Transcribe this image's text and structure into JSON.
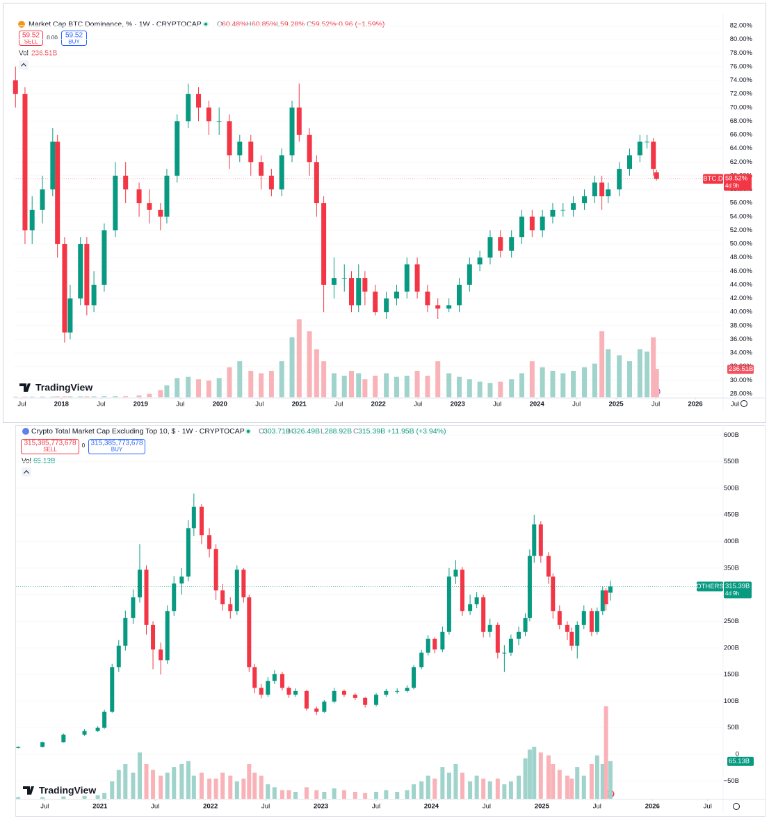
{
  "chart_data": [
    {
      "type": "candlestick",
      "header": {
        "title": "Market Cap BTC Dominance, % · 1W · CRYPTOCAP",
        "ohlc": [
          {
            "label": "O",
            "value": "60.48%"
          },
          {
            "label": "H",
            "value": "60.85%"
          },
          {
            "label": "L",
            "value": "59.28%"
          },
          {
            "label": "C",
            "value": "59.52%"
          }
        ],
        "change": "−0.96 (−1.59%)",
        "sell_price": "59.52",
        "sell": "SELL",
        "spread": "0.00",
        "buy_price": "59.52",
        "buy": "BUY",
        "vol_label": "Vol",
        "vol_value": "236.51B"
      },
      "price_label": {
        "symbol": "BTC.D",
        "price": "59.52%",
        "countdown": "4d 9h"
      },
      "volume_label": "236.51B",
      "logo": "TradingView",
      "colors": {
        "up": "#089981",
        "down": "#f23645",
        "volume_up": "#9fd3cb",
        "volume_down": "#f9b3b8"
      },
      "xlim": [
        2017.4,
        2026.35
      ],
      "xticks": [
        {
          "value": 2017.5,
          "label": "Jul"
        },
        2018,
        {
          "value": 2018.5,
          "label": "Jul"
        },
        2019,
        {
          "value": 2019.5,
          "label": "Jul"
        },
        2020,
        {
          "value": 2020.5,
          "label": "Jul"
        },
        2021,
        {
          "value": 2021.5,
          "label": "Jul"
        },
        2022,
        {
          "value": 2022.5,
          "label": "Jul"
        },
        2023,
        {
          "value": 2023.5,
          "label": "Jul"
        },
        2024,
        {
          "value": 2024.5,
          "label": "Jul"
        },
        2025,
        {
          "value": 2025.5,
          "label": "Jul"
        },
        2026,
        {
          "value": 2026.5,
          "label": "Jul"
        }
      ],
      "ylim": [
        27.49,
        83.73
      ],
      "yticks": [
        {
          "value": 82,
          "label": "82.00%"
        },
        {
          "value": 80,
          "label": "80.00%"
        },
        {
          "value": 78,
          "label": "78.00%"
        },
        {
          "value": 76,
          "label": "76.00%"
        },
        {
          "value": 74,
          "label": "74.00%"
        },
        {
          "value": 72,
          "label": "72.00%"
        },
        {
          "value": 70,
          "label": "70.00%"
        },
        {
          "value": 68,
          "label": "68.00%"
        },
        {
          "value": 66,
          "label": "66.00%"
        },
        {
          "value": 64,
          "label": "64.00%"
        },
        {
          "value": 62,
          "label": "62.00%"
        },
        {
          "value": 60,
          "label": "60.00%"
        },
        {
          "value": 58,
          "label": "58.00%"
        },
        {
          "value": 56,
          "label": "56.00%"
        },
        {
          "value": 54,
          "label": "54.00%"
        },
        {
          "value": 52,
          "label": "52.00%"
        },
        {
          "value": 50,
          "label": "50.00%"
        },
        {
          "value": 48,
          "label": "48.00%"
        },
        {
          "value": 46,
          "label": "46.00%"
        },
        {
          "value": 44,
          "label": "44.00%"
        },
        {
          "value": 42,
          "label": "42.00%"
        },
        {
          "value": 40,
          "label": "40.00%"
        },
        {
          "value": 38,
          "label": "38.00%"
        },
        {
          "value": 36,
          "label": "36.00%"
        },
        {
          "value": 34,
          "label": "34.00%"
        },
        {
          "value": 32,
          "label": "32.00%"
        },
        {
          "value": 30,
          "label": "30.00%"
        },
        {
          "value": 28,
          "label": "28.00%"
        }
      ],
      "volume_ylim": [
        0,
        1000
      ],
      "x": [
        2017.42,
        2017.54,
        2017.63,
        2017.76,
        2017.89,
        2017.95,
        2018.04,
        2018.11,
        2018.24,
        2018.32,
        2018.41,
        2018.54,
        2018.68,
        2018.81,
        2018.98,
        2019.11,
        2019.25,
        2019.33,
        2019.46,
        2019.6,
        2019.73,
        2019.86,
        2019.99,
        2020.12,
        2020.25,
        2020.39,
        2020.52,
        2020.65,
        2020.78,
        2020.91,
        2021.0,
        2021.13,
        2021.22,
        2021.31,
        2021.44,
        2021.57,
        2021.66,
        2021.75,
        2021.83,
        2021.96,
        2022.1,
        2022.23,
        2022.36,
        2022.49,
        2022.62,
        2022.75,
        2022.89,
        2023.02,
        2023.15,
        2023.28,
        2023.41,
        2023.54,
        2023.68,
        2023.81,
        2023.94,
        2024.07,
        2024.2,
        2024.33,
        2024.46,
        2024.6,
        2024.73,
        2024.82,
        2024.9,
        2025.04,
        2025.17,
        2025.3,
        2025.39,
        2025.47,
        2025.51
      ],
      "open": [
        74,
        72,
        52,
        55,
        58,
        65,
        50,
        37,
        42,
        50,
        41,
        44,
        52,
        60,
        58,
        56,
        55,
        54,
        60,
        68,
        72,
        70,
        68,
        68,
        63,
        65,
        62,
        60,
        58,
        63,
        70,
        66,
        62,
        56,
        44,
        45,
        45,
        41,
        45,
        43,
        40,
        42,
        43,
        47,
        43,
        41,
        40.5,
        41,
        44,
        47,
        48,
        51,
        49,
        51,
        54,
        52,
        54,
        55,
        55,
        56,
        57,
        59,
        57,
        58,
        61,
        63,
        65,
        65,
        60.48
      ],
      "high": [
        76,
        73,
        57,
        60,
        67,
        66,
        51,
        44,
        51,
        51,
        46,
        53,
        62,
        62,
        59,
        58,
        56,
        61,
        69,
        73.5,
        73,
        71,
        70,
        69,
        66,
        66,
        63,
        61,
        64,
        71,
        73.5,
        67,
        63,
        57,
        48,
        47,
        46,
        47,
        46,
        44,
        43,
        44,
        48,
        48,
        44,
        42,
        42,
        45,
        48,
        49,
        52,
        52,
        52,
        55,
        55,
        55,
        56,
        56,
        57,
        58,
        60,
        60,
        59,
        62,
        64,
        66,
        66,
        65.5,
        60.85
      ],
      "low": [
        70,
        50,
        50,
        53,
        57,
        48,
        35.5,
        36,
        41,
        39.5,
        40,
        43,
        51,
        56,
        54,
        53,
        52,
        53,
        59,
        67,
        68,
        66,
        66,
        61,
        62,
        60,
        58,
        57,
        57,
        62,
        65,
        60,
        54,
        40,
        42,
        43,
        40,
        40,
        41,
        39.5,
        39,
        41,
        42,
        42,
        40,
        39,
        40,
        40,
        43,
        46,
        47,
        48,
        48,
        50,
        51,
        51,
        53,
        54,
        54,
        55,
        56,
        55,
        56,
        57,
        60,
        62,
        64,
        60,
        59.28
      ],
      "close": [
        72,
        52,
        55,
        58,
        65,
        50,
        37,
        42,
        50,
        41,
        44,
        52,
        60,
        58,
        56,
        55,
        54,
        60,
        68,
        72,
        70,
        68,
        68,
        63,
        65,
        62,
        60,
        58,
        63,
        70,
        66,
        62,
        56,
        44,
        45,
        45,
        41,
        45,
        43,
        40,
        42,
        43,
        47,
        43,
        41,
        40.5,
        41,
        44,
        47,
        48,
        51,
        49,
        51,
        54,
        52,
        54,
        55,
        55,
        56,
        57,
        59,
        57,
        58,
        61,
        63,
        65,
        65,
        61,
        59.52
      ],
      "volume": [
        5,
        5,
        5,
        6,
        6,
        8,
        8,
        8,
        8,
        8,
        8,
        10,
        10,
        10,
        15,
        30,
        60,
        100,
        160,
        170,
        150,
        140,
        160,
        250,
        300,
        220,
        200,
        220,
        300,
        500,
        650,
        550,
        400,
        300,
        200,
        180,
        220,
        200,
        150,
        180,
        200,
        170,
        180,
        220,
        180,
        300,
        200,
        170,
        150,
        130,
        120,
        130,
        150,
        200,
        300,
        250,
        220,
        200,
        220,
        250,
        280,
        550,
        400,
        350,
        300,
        400,
        380,
        500,
        236.51
      ]
    },
    {
      "type": "candlestick",
      "header": {
        "title": "Crypto Total Market Cap Excluding Top 10, $ · 1W · CRYPTOCAP",
        "ohlc": [
          {
            "label": "O",
            "value": "303.71B"
          },
          {
            "label": "H",
            "value": "326.49B"
          },
          {
            "label": "L",
            "value": "288.92B"
          },
          {
            "label": "C",
            "value": "315.39B"
          }
        ],
        "change": "+11.95B (+3.94%)",
        "sell_price": "315,385,773,678",
        "sell": "SELL",
        "spread": "0",
        "buy_price": "315,385,773,678",
        "buy": "BUY",
        "vol_label": "Vol",
        "vol_value": "65.13B"
      },
      "price_label": {
        "symbol": "OTHERS",
        "price": "315.39B",
        "countdown": "4d 9h"
      },
      "volume_label": "65.13B",
      "logo": "TradingView",
      "colors": {
        "up": "#089981",
        "down": "#f23645",
        "volume_up": "#9fd3cb",
        "volume_down": "#f9b3b8"
      },
      "xlim": [
        2020.24,
        2026.64
      ],
      "xticks": [
        {
          "value": 2020.5,
          "label": "Jul"
        },
        2021,
        {
          "value": 2021.5,
          "label": "Jul"
        },
        2022,
        {
          "value": 2022.5,
          "label": "Jul"
        },
        2023,
        {
          "value": 2023.5,
          "label": "Jul"
        },
        2024,
        {
          "value": 2024.5,
          "label": "Jul"
        },
        2025,
        {
          "value": 2025.5,
          "label": "Jul"
        },
        2026,
        {
          "value": 2026.5,
          "label": "Jul"
        }
      ],
      "ylim": [
        -83.5,
        618.6
      ],
      "yticks": [
        {
          "value": 600,
          "label": "600B"
        },
        {
          "value": 550,
          "label": "550B"
        },
        {
          "value": 500,
          "label": "500B"
        },
        {
          "value": 450,
          "label": "450B"
        },
        {
          "value": 400,
          "label": "400B"
        },
        {
          "value": 350,
          "label": "350B"
        },
        {
          "value": 300,
          "label": "300B"
        },
        {
          "value": 250,
          "label": "250B"
        },
        {
          "value": 200,
          "label": "200B"
        },
        {
          "value": 150,
          "label": "150B"
        },
        {
          "value": 100,
          "label": "100B"
        },
        {
          "value": 50,
          "label": "50B"
        },
        0,
        {
          "value": -50,
          "label": "−50B"
        }
      ],
      "volume_ylim": [
        0,
        240
      ],
      "x": [
        2020.26,
        2020.48,
        2020.67,
        2020.86,
        2020.98,
        2021.04,
        2021.11,
        2021.17,
        2021.23,
        2021.3,
        2021.36,
        2021.42,
        2021.48,
        2021.55,
        2021.61,
        2021.67,
        2021.74,
        2021.8,
        2021.85,
        2021.92,
        2021.99,
        2022.05,
        2022.11,
        2022.18,
        2022.24,
        2022.3,
        2022.35,
        2022.4,
        2022.46,
        2022.52,
        2022.58,
        2022.65,
        2022.71,
        2022.77,
        2022.87,
        2022.96,
        2023.03,
        2023.12,
        2023.21,
        2023.31,
        2023.4,
        2023.5,
        2023.59,
        2023.69,
        2023.78,
        2023.84,
        2023.91,
        2023.97,
        2024.03,
        2024.1,
        2024.16,
        2024.22,
        2024.28,
        2024.35,
        2024.41,
        2024.47,
        2024.53,
        2024.6,
        2024.66,
        2024.72,
        2024.79,
        2024.85,
        2024.89,
        2024.93,
        2024.99,
        2025.06,
        2025.1,
        2025.16,
        2025.23,
        2025.27,
        2025.32,
        2025.38,
        2025.45,
        2025.5,
        2025.55,
        2025.58,
        2025.62
      ],
      "open": [
        12,
        14,
        23,
        37,
        44,
        50,
        80,
        164,
        204,
        256,
        295,
        347,
        243,
        197,
        177,
        269,
        321,
        334,
        425,
        465,
        412,
        386,
        308,
        282,
        269,
        347,
        295,
        164,
        125,
        112,
        138,
        151,
        125,
        112,
        119,
        86,
        80,
        99,
        119,
        112,
        106,
        93,
        112,
        119,
        119,
        125,
        164,
        191,
        217,
        197,
        230,
        334,
        347,
        269,
        282,
        295,
        230,
        243,
        191,
        191,
        217,
        230,
        256,
        373,
        432,
        373,
        334,
        269,
        243,
        230,
        204,
        243,
        269,
        230,
        269,
        308,
        303.71
      ],
      "high": [
        15,
        24,
        39,
        47,
        53,
        84,
        170,
        215,
        270,
        310,
        395,
        355,
        250,
        210,
        280,
        335,
        350,
        440,
        490,
        470,
        425,
        395,
        320,
        295,
        355,
        350,
        300,
        170,
        132,
        145,
        158,
        155,
        128,
        124,
        121,
        90,
        102,
        125,
        122,
        115,
        108,
        115,
        123,
        124,
        130,
        168,
        196,
        224,
        220,
        240,
        350,
        365,
        352,
        300,
        305,
        300,
        255,
        248,
        205,
        225,
        240,
        265,
        385,
        450,
        438,
        380,
        340,
        280,
        250,
        238,
        250,
        280,
        275,
        276,
        315,
        312,
        326.49
      ],
      "low": [
        11,
        13,
        22,
        35,
        42,
        48,
        78,
        155,
        195,
        245,
        285,
        225,
        160,
        150,
        170,
        260,
        300,
        325,
        410,
        395,
        370,
        290,
        270,
        255,
        262,
        285,
        155,
        115,
        105,
        108,
        132,
        120,
        106,
        108,
        82,
        74,
        78,
        96,
        108,
        102,
        88,
        90,
        108,
        114,
        116,
        122,
        160,
        186,
        190,
        192,
        225,
        320,
        260,
        262,
        275,
        220,
        220,
        180,
        155,
        185,
        205,
        222,
        250,
        360,
        360,
        320,
        255,
        235,
        215,
        195,
        180,
        235,
        222,
        225,
        262,
        270,
        288.92
      ],
      "close": [
        14,
        23,
        37,
        44,
        50,
        80,
        164,
        204,
        256,
        295,
        347,
        243,
        197,
        177,
        269,
        321,
        334,
        425,
        465,
        412,
        386,
        308,
        282,
        269,
        347,
        295,
        164,
        125,
        112,
        138,
        151,
        125,
        112,
        119,
        86,
        80,
        99,
        119,
        112,
        106,
        93,
        112,
        119,
        119,
        125,
        164,
        191,
        217,
        197,
        230,
        334,
        347,
        269,
        282,
        295,
        230,
        243,
        191,
        191,
        217,
        230,
        256,
        373,
        432,
        373,
        334,
        269,
        243,
        230,
        204,
        243,
        269,
        230,
        269,
        308,
        282,
        315.39
      ],
      "volume": [
        3,
        3,
        4,
        5,
        6,
        10,
        30,
        50,
        60,
        45,
        80,
        60,
        50,
        40,
        45,
        55,
        60,
        65,
        40,
        45,
        35,
        35,
        45,
        40,
        30,
        35,
        60,
        45,
        40,
        25,
        20,
        15,
        15,
        12,
        20,
        15,
        12,
        18,
        15,
        12,
        10,
        12,
        15,
        12,
        15,
        25,
        30,
        40,
        35,
        55,
        45,
        60,
        45,
        30,
        40,
        35,
        30,
        35,
        25,
        30,
        40,
        70,
        85,
        90,
        80,
        75,
        60,
        50,
        40,
        35,
        55,
        40,
        60,
        75,
        60,
        160,
        65.13
      ]
    }
  ]
}
